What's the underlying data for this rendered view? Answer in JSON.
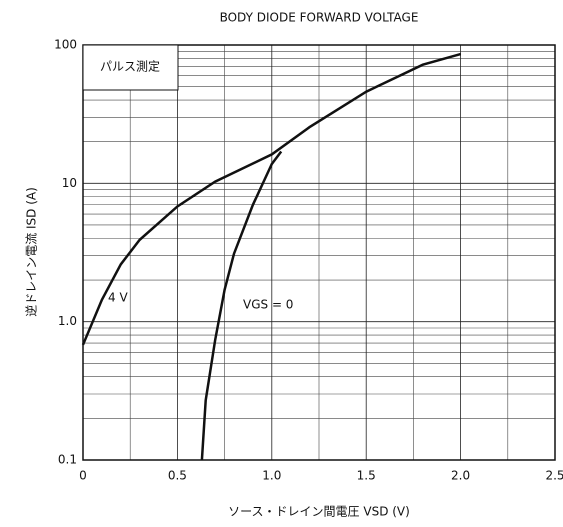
{
  "chart_data": {
    "type": "line",
    "title": "BODY DIODE FORWARD VOLTAGE",
    "x_label": "ソース・ドレイン間電圧 VSD (V)",
    "y_label": "逆ドレイン電流 ISD (A)",
    "annotation": "パルス測定",
    "xlim": [
      0,
      2.5
    ],
    "ylim": [
      0.1,
      100
    ],
    "log_y": true,
    "grid": true,
    "xticks": [
      0,
      0.5,
      {
        "value": 1,
        "label": "1.0"
      },
      1.5,
      {
        "value": 2,
        "label": "2.0"
      },
      2.5
    ],
    "yticks": [
      0.1,
      {
        "value": 1,
        "label": "1.0"
      },
      10,
      100
    ],
    "xminor": [
      0.25,
      0.75,
      1.25,
      1.75,
      2.25
    ],
    "yminor": [
      0.2,
      0.3,
      0.4,
      0.5,
      0.6,
      0.7,
      0.8,
      0.9,
      2,
      3,
      4,
      5,
      6,
      7,
      8,
      9,
      20,
      30,
      40,
      50,
      60,
      70,
      80,
      90
    ],
    "series": [
      {
        "name": "4 V",
        "color": "#111111",
        "x": [
          0,
          0.1,
          0.2,
          0.3,
          0.5,
          0.7,
          1.0,
          1.2,
          1.5,
          1.8,
          2.0
        ],
        "values": [
          0.68,
          1.44,
          2.6,
          3.9,
          6.8,
          10.3,
          16.2,
          25.5,
          46,
          72,
          86
        ]
      },
      {
        "name": "VGS = 0",
        "color": "#111111",
        "x": [
          0.63,
          0.65,
          0.7,
          0.75,
          0.8,
          0.9,
          1.0,
          1.05
        ],
        "values": [
          0.1,
          0.27,
          0.74,
          1.7,
          3.1,
          7,
          13.8,
          17
        ]
      }
    ]
  }
}
